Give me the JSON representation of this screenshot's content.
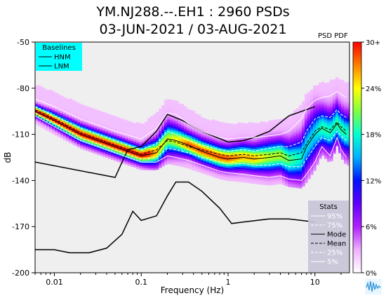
{
  "title_line1": "YM.NJ288.--.EH1 : 2960 PSDs",
  "title_line2": "03-JUN-2021 / 03-AUG-2021",
  "colorbar_caption": "PSD PDF",
  "colors": {
    "plot_background": "#efefef",
    "baselines_box": "#00ffff",
    "stats_box": "#c8c4d8",
    "colormap": [
      "#ffffff",
      "#f0b0ff",
      "#b020ff",
      "#6000ff",
      "#0010ff",
      "#00b0ff",
      "#00ffd0",
      "#80ff40",
      "#ffff00",
      "#ff8000",
      "#ff0000"
    ]
  },
  "chart_data": {
    "type": "heatmap",
    "title": "YM.NJ288.--.EH1 : 2960 PSDs",
    "subtitle": "03-JUN-2021 / 03-AUG-2021",
    "xlabel": "Frequency (Hz)",
    "ylabel": "dB",
    "x_scale": "log",
    "xlim": [
      0.006,
      25
    ],
    "ylim": [
      -200,
      -50
    ],
    "x_ticks": [
      0.01,
      0.1,
      1,
      10
    ],
    "x_tick_labels": [
      "0.01",
      "0.1",
      "1",
      "10"
    ],
    "y_ticks": [
      -50,
      -80,
      -110,
      -140,
      -170,
      -200
    ],
    "y_tick_labels": [
      "-50",
      "-80",
      "-110",
      "-140",
      "-170",
      "-200"
    ],
    "colorbar": {
      "label": "PSD PDF",
      "range": [
        0,
        30
      ],
      "ticks": [
        0,
        6,
        12,
        18,
        24,
        30
      ],
      "tick_labels": [
        "0%",
        "6%",
        "12%",
        "18%",
        "24%",
        "30+"
      ]
    },
    "legend_baselines": {
      "title": "Baselines",
      "entries": [
        "HNM",
        "LNM"
      ],
      "placement": "top-left"
    },
    "legend_stats": {
      "title": "Stats",
      "entries": [
        "95%",
        "75%",
        "Mode",
        "Mean",
        "25%",
        "5%"
      ],
      "placement": "bottom-right"
    },
    "series": [
      {
        "name": "HNM",
        "x": [
          0.006,
          0.05,
          0.07,
          0.1,
          0.15,
          0.2,
          0.3,
          0.5,
          1.0,
          1.5,
          2.0,
          3.0,
          5.0,
          10.0
        ],
        "y": [
          -128,
          -138,
          -120,
          -118,
          -108,
          -97,
          -101,
          -108,
          -115,
          -114,
          -112,
          -108,
          -98,
          -92
        ]
      },
      {
        "name": "LNM",
        "x": [
          0.006,
          0.01,
          0.015,
          0.025,
          0.04,
          0.06,
          0.08,
          0.1,
          0.15,
          0.2,
          0.25,
          0.35,
          0.5,
          0.8,
          1.1,
          1.5,
          3.0,
          5.0,
          10.0
        ],
        "y": [
          -185,
          -185,
          -187,
          -187,
          -184,
          -175,
          -160,
          -166,
          -163,
          -150,
          -141,
          -141,
          -147,
          -158,
          -168,
          -167,
          -165,
          -165,
          -167
        ]
      },
      {
        "name": "Mode",
        "x": [
          0.006,
          0.01,
          0.02,
          0.05,
          0.1,
          0.15,
          0.2,
          0.25,
          0.35,
          0.5,
          0.8,
          1.0,
          1.5,
          2.0,
          3.0,
          4.0,
          5.0,
          7.0,
          8.0,
          10.0,
          12.0,
          15.0,
          18.0,
          20.0,
          23.0
        ],
        "y": [
          -95,
          -101,
          -110,
          -118,
          -124,
          -122,
          -113,
          -114,
          -117,
          -121,
          -125,
          -126,
          -125,
          -126,
          -125,
          -124,
          -127,
          -126,
          -118,
          -110,
          -106,
          -109,
          -103,
          -107,
          -110
        ]
      },
      {
        "name": "Mean",
        "x": [
          0.006,
          0.01,
          0.02,
          0.05,
          0.1,
          0.15,
          0.2,
          0.25,
          0.35,
          0.5,
          0.8,
          1.0,
          1.5,
          2.0,
          3.0,
          4.0,
          5.0,
          7.0,
          8.0,
          10.0,
          12.0,
          15.0,
          18.0,
          20.0,
          23.0
        ],
        "y": [
          -94,
          -100,
          -109,
          -117,
          -123,
          -120,
          -114,
          -115,
          -118,
          -120,
          -123,
          -124,
          -123,
          -124,
          -123,
          -122,
          -124,
          -122,
          -116,
          -108,
          -105,
          -107,
          -102,
          -105,
          -108
        ]
      },
      {
        "name": "95%",
        "x": [
          0.006,
          0.01,
          0.02,
          0.05,
          0.1,
          0.15,
          0.2,
          0.25,
          0.35,
          0.5,
          0.8,
          1.0,
          1.5,
          2.0,
          3.0,
          4.0,
          5.0,
          7.0,
          8.0,
          10.0,
          12.0,
          15.0,
          18.0,
          20.0,
          23.0
        ],
        "y": [
          -87,
          -92,
          -100,
          -108,
          -113,
          -106,
          -96,
          -97,
          -103,
          -108,
          -112,
          -113,
          -112,
          -112,
          -111,
          -110,
          -108,
          -100,
          -93,
          -88,
          -86,
          -85,
          -82,
          -84,
          -86
        ]
      },
      {
        "name": "75%",
        "x": [
          0.006,
          0.01,
          0.02,
          0.05,
          0.1,
          0.15,
          0.2,
          0.25,
          0.35,
          0.5,
          0.8,
          1.0,
          1.5,
          2.0,
          3.0,
          4.0,
          5.0,
          7.0,
          8.0,
          10.0,
          12.0,
          15.0,
          18.0,
          20.0,
          23.0
        ],
        "y": [
          -92,
          -98,
          -106,
          -114,
          -120,
          -116,
          -108,
          -110,
          -114,
          -117,
          -120,
          -121,
          -120,
          -121,
          -119,
          -118,
          -118,
          -115,
          -108,
          -100,
          -98,
          -99,
          -94,
          -97,
          -99
        ]
      },
      {
        "name": "25%",
        "x": [
          0.006,
          0.01,
          0.02,
          0.05,
          0.1,
          0.15,
          0.2,
          0.25,
          0.35,
          0.5,
          0.8,
          1.0,
          1.5,
          2.0,
          3.0,
          4.0,
          5.0,
          7.0,
          8.0,
          10.0,
          12.0,
          15.0,
          18.0,
          20.0,
          23.0
        ],
        "y": [
          -96,
          -103,
          -112,
          -120,
          -126,
          -125,
          -119,
          -120,
          -122,
          -125,
          -128,
          -129,
          -129,
          -130,
          -130,
          -129,
          -131,
          -131,
          -126,
          -118,
          -112,
          -114,
          -108,
          -111,
          -114
        ]
      },
      {
        "name": "5%",
        "x": [
          0.006,
          0.01,
          0.02,
          0.05,
          0.1,
          0.15,
          0.2,
          0.25,
          0.35,
          0.5,
          0.8,
          1.0,
          1.5,
          2.0,
          3.0,
          4.0,
          5.0,
          7.0,
          8.0,
          10.0,
          12.0,
          15.0,
          18.0,
          20.0,
          23.0
        ],
        "y": [
          -98,
          -105,
          -114,
          -122,
          -128,
          -128,
          -124,
          -125,
          -127,
          -130,
          -134,
          -135,
          -136,
          -137,
          -138,
          -137,
          -139,
          -140,
          -136,
          -128,
          -118,
          -124,
          -112,
          -120,
          -125
        ]
      }
    ]
  }
}
